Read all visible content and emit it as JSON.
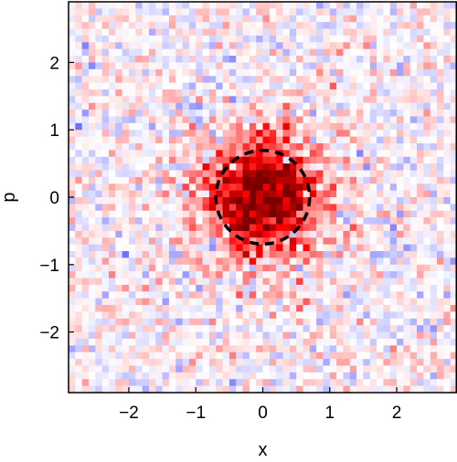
{
  "chart_data": {
    "type": "heatmap",
    "title": "",
    "xlabel": "x",
    "ylabel": "p",
    "xlim": [
      -2.9,
      2.9
    ],
    "ylim": [
      -2.9,
      2.9
    ],
    "x_ticks": [
      -2,
      -1,
      0,
      1,
      2
    ],
    "x_tick_labels": [
      "−2",
      "−1",
      "0",
      "1",
      "2"
    ],
    "y_ticks": [
      -2,
      -1,
      0,
      1,
      2
    ],
    "y_tick_labels": [
      "−2",
      "−1",
      "0",
      "1",
      "2"
    ],
    "grid": false,
    "colormap": {
      "negative": "#6b6bff",
      "zero": "#ffffff",
      "positive": "#ff0000",
      "deep_positive": "#7a0000"
    },
    "distribution": {
      "shape": "gaussian",
      "center": [
        0,
        0
      ],
      "sigma": 0.55,
      "peak": 1.0,
      "noise_level": 0.16,
      "grid_points": 58
    },
    "overlay": {
      "shape": "circle",
      "center": [
        0,
        0
      ],
      "radius": 0.7,
      "style": "dashed",
      "color": "#000000"
    }
  }
}
